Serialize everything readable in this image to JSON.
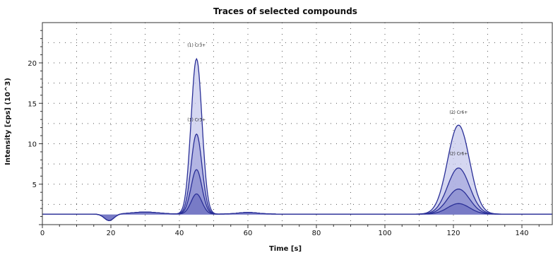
{
  "chart_data": {
    "type": "line",
    "title": "Traces of selected compounds",
    "xlabel": "Time [s]",
    "ylabel": "Intensity [cps] (10^3)",
    "xlim": [
      0,
      150
    ],
    "ylim": [
      0,
      24
    ],
    "x_ticks": [
      0,
      20,
      40,
      60,
      80,
      100,
      120,
      140
    ],
    "y_ticks": [
      5,
      10,
      15,
      20
    ],
    "grid": true,
    "baseline": 1.3,
    "series": [
      {
        "peaks": [
          {
            "center": 45,
            "height": 20.5,
            "width": 1.6
          },
          {
            "center": 121.5,
            "height": 12.3,
            "width": 3.2
          }
        ]
      },
      {
        "peaks": [
          {
            "center": 45,
            "height": 11.2,
            "width": 1.6
          },
          {
            "center": 121.5,
            "height": 7.0,
            "width": 3.2
          }
        ]
      },
      {
        "peaks": [
          {
            "center": 45,
            "height": 6.8,
            "width": 1.6
          },
          {
            "center": 121.5,
            "height": 4.4,
            "width": 3.2
          }
        ]
      },
      {
        "peaks": [
          {
            "center": 45,
            "height": 3.8,
            "width": 1.6
          },
          {
            "center": 121.5,
            "height": 2.6,
            "width": 3.2
          }
        ]
      }
    ],
    "annotations": [
      {
        "text": "(1) Cr3+",
        "x": 45,
        "y": 22.0
      },
      {
        "text": "(1) Cr3+",
        "x": 45,
        "y": 12.8
      },
      {
        "text": "(2) Cr6+",
        "x": 121.5,
        "y": 13.7
      },
      {
        "text": "(2) Cr6+",
        "x": 121.5,
        "y": 8.6
      }
    ]
  }
}
